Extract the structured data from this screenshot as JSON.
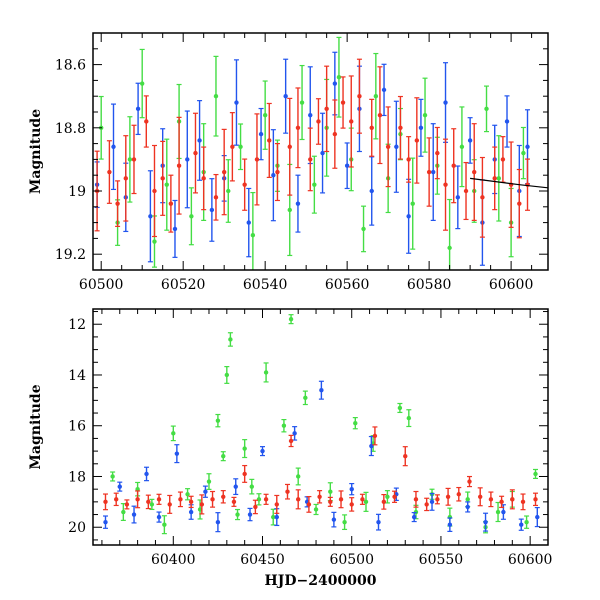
{
  "chart_data": [
    {
      "type": "scatter",
      "panel": "top",
      "title": "",
      "xlabel": "",
      "ylabel": "Magnitude",
      "xlim": [
        60498,
        60609
      ],
      "ylim": [
        19.25,
        18.5
      ],
      "y_inverted": true,
      "x_ticks": [
        60500,
        60520,
        60540,
        60560,
        60580,
        60600
      ],
      "y_ticks": [
        18.6,
        18.8,
        19,
        19.2
      ],
      "x_tick_labels": [
        "60500",
        "60520",
        "60540",
        "60560",
        "60580",
        "60600"
      ],
      "y_tick_labels": [
        "18.6",
        "18.8",
        "19",
        "19.2"
      ],
      "series": [
        {
          "color": "#2255ee",
          "values": [
            [
              60499,
              18.98
            ],
            [
              60503,
              18.86
            ],
            [
              60506,
              19.02
            ],
            [
              60509,
              18.74
            ],
            [
              60512,
              19.08
            ],
            [
              60515,
              18.92
            ],
            [
              60518,
              19.12
            ],
            [
              60521,
              18.9
            ],
            [
              60524,
              18.84
            ],
            [
              60527,
              19.06
            ],
            [
              60530,
              18.96
            ],
            [
              60533,
              18.72
            ],
            [
              60536,
              19.1
            ],
            [
              60539,
              18.82
            ],
            [
              60542,
              18.95
            ],
            [
              60545,
              18.7
            ],
            [
              60548,
              19.04
            ],
            [
              60551,
              18.76
            ],
            [
              60554,
              18.88
            ],
            [
              60557,
              18.66
            ],
            [
              60560,
              18.92
            ],
            [
              60563,
              18.74
            ],
            [
              60566,
              19.0
            ],
            [
              60569,
              18.68
            ],
            [
              60572,
              18.86
            ],
            [
              60575,
              19.08
            ],
            [
              60578,
              18.8
            ],
            [
              60581,
              18.94
            ],
            [
              60584,
              18.72
            ],
            [
              60587,
              19.02
            ],
            [
              60590,
              18.84
            ],
            [
              60593,
              19.1
            ],
            [
              60596,
              18.9
            ],
            [
              60599,
              18.78
            ],
            [
              60602,
              19.0
            ],
            [
              60604,
              18.86
            ]
          ]
        },
        {
          "color": "#44dd44",
          "values": [
            [
              60500,
              18.8
            ],
            [
              60504,
              19.1
            ],
            [
              60507,
              18.9
            ],
            [
              60510,
              18.66
            ],
            [
              60513,
              19.16
            ],
            [
              60516,
              18.98
            ],
            [
              60519,
              18.78
            ],
            [
              60522,
              19.08
            ],
            [
              60525,
              18.94
            ],
            [
              60528,
              18.7
            ],
            [
              60531,
              19.0
            ],
            [
              60534,
              18.86
            ],
            [
              60537,
              19.14
            ],
            [
              60540,
              18.76
            ],
            [
              60543,
              18.92
            ],
            [
              60546,
              19.06
            ],
            [
              60549,
              18.72
            ],
            [
              60552,
              18.98
            ],
            [
              60555,
              18.8
            ],
            [
              60558,
              18.64
            ],
            [
              60561,
              18.9
            ],
            [
              60564,
              19.12
            ],
            [
              60567,
              18.7
            ],
            [
              60570,
              18.96
            ],
            [
              60573,
              18.82
            ],
            [
              60576,
              19.04
            ],
            [
              60579,
              18.76
            ],
            [
              60582,
              18.92
            ],
            [
              60585,
              19.18
            ],
            [
              60588,
              18.86
            ],
            [
              60591,
              19.0
            ],
            [
              60594,
              18.74
            ],
            [
              60597,
              18.96
            ],
            [
              60600,
              19.1
            ],
            [
              60603,
              18.88
            ]
          ]
        },
        {
          "color": "#ee3322",
          "values": [
            [
              60499,
              19.0
            ],
            [
              60502,
              18.94
            ],
            [
              60504,
              19.04
            ],
            [
              60506,
              18.96
            ],
            [
              60508,
              18.9
            ],
            [
              60511,
              18.78
            ],
            [
              60513,
              19.0
            ],
            [
              60515,
              18.96
            ],
            [
              60517,
              19.04
            ],
            [
              60519,
              18.92
            ],
            [
              60523,
              18.88
            ],
            [
              60525,
              18.96
            ],
            [
              60528,
              19.02
            ],
            [
              60530,
              18.94
            ],
            [
              60532,
              18.86
            ],
            [
              60535,
              18.98
            ],
            [
              60538,
              18.9
            ],
            [
              60541,
              18.84
            ],
            [
              60543,
              18.94
            ],
            [
              60546,
              18.86
            ],
            [
              60548,
              18.8
            ],
            [
              60551,
              18.9
            ],
            [
              60553,
              18.78
            ],
            [
              60555,
              18.74
            ],
            [
              60557,
              18.82
            ],
            [
              60559,
              18.72
            ],
            [
              60561,
              18.78
            ],
            [
              60563,
              18.7
            ],
            [
              60566,
              18.8
            ],
            [
              60568,
              18.76
            ],
            [
              60570,
              18.86
            ],
            [
              60573,
              18.8
            ],
            [
              60575,
              18.9
            ],
            [
              60577,
              18.84
            ],
            [
              60580,
              18.94
            ],
            [
              60582,
              18.88
            ],
            [
              60584,
              18.98
            ],
            [
              60586,
              18.92
            ],
            [
              60589,
              19.0
            ],
            [
              60591,
              18.94
            ],
            [
              60593,
              19.02
            ],
            [
              60596,
              18.96
            ],
            [
              60598,
              18.9
            ],
            [
              60600,
              18.98
            ],
            [
              60602,
              19.04
            ],
            [
              60604,
              18.98
            ]
          ]
        }
      ],
      "model_curve": [
        [
          60590,
          18.96
        ],
        [
          60596,
          18.97
        ],
        [
          60602,
          18.98
        ],
        [
          60609,
          18.99
        ]
      ],
      "grid": false,
      "legend": "none"
    },
    {
      "type": "scatter",
      "panel": "bottom",
      "title": "",
      "xlabel": "HJD−2400000",
      "ylabel": "Magnitude",
      "xlim": [
        60355,
        60610
      ],
      "ylim": [
        20.7,
        11.4
      ],
      "y_inverted": true,
      "x_ticks": [
        60400,
        60450,
        60500,
        60550,
        60600
      ],
      "y_ticks": [
        12,
        14,
        16,
        18,
        20
      ],
      "x_tick_labels": [
        "60400",
        "60450",
        "60500",
        "60550",
        "60600"
      ],
      "y_tick_labels": [
        "12",
        "14",
        "16",
        "18",
        "20"
      ],
      "series": [
        {
          "color": "#44dd44",
          "values": [
            [
              60366,
              18.0
            ],
            [
              60372,
              19.4
            ],
            [
              60380,
              18.5
            ],
            [
              60388,
              19.1
            ],
            [
              60395,
              19.9
            ],
            [
              60400,
              16.3
            ],
            [
              60408,
              18.7
            ],
            [
              60415,
              19.3
            ],
            [
              60420,
              18.2
            ],
            [
              60425,
              15.8
            ],
            [
              60428,
              17.2
            ],
            [
              60430,
              14.0
            ],
            [
              60432,
              12.6
            ],
            [
              60436,
              19.5
            ],
            [
              60440,
              16.9
            ],
            [
              60444,
              18.4
            ],
            [
              60448,
              18.9
            ],
            [
              60452,
              13.9
            ],
            [
              60456,
              19.6
            ],
            [
              60462,
              16.0
            ],
            [
              60466,
              11.8
            ],
            [
              60470,
              18.0
            ],
            [
              60474,
              14.9
            ],
            [
              60480,
              19.3
            ],
            [
              60488,
              18.6
            ],
            [
              60496,
              19.8
            ],
            [
              60502,
              15.9
            ],
            [
              60508,
              19.0
            ],
            [
              60512,
              16.7
            ],
            [
              60520,
              18.8
            ],
            [
              60527,
              15.3
            ],
            [
              60532,
              15.7
            ],
            [
              60536,
              19.4
            ],
            [
              60545,
              18.7
            ],
            [
              60555,
              19.6
            ],
            [
              60565,
              18.9
            ],
            [
              60575,
              20.0
            ],
            [
              60582,
              19.4
            ],
            [
              60590,
              18.9
            ],
            [
              60598,
              19.8
            ],
            [
              60603,
              17.9
            ]
          ]
        },
        {
          "color": "#2255ee",
          "values": [
            [
              60362,
              19.8
            ],
            [
              60370,
              18.4
            ],
            [
              60378,
              19.5
            ],
            [
              60385,
              17.9
            ],
            [
              60392,
              19.6
            ],
            [
              60402,
              17.1
            ],
            [
              60410,
              19.4
            ],
            [
              60418,
              18.6
            ],
            [
              60425,
              19.8
            ],
            [
              60435,
              18.4
            ],
            [
              60443,
              19.5
            ],
            [
              60450,
              17.0
            ],
            [
              60458,
              19.6
            ],
            [
              60468,
              16.3
            ],
            [
              60475,
              19.0
            ],
            [
              60483,
              14.6
            ],
            [
              60490,
              19.7
            ],
            [
              60500,
              18.5
            ],
            [
              60511,
              16.8
            ],
            [
              60515,
              19.8
            ],
            [
              60525,
              18.7
            ],
            [
              60535,
              19.6
            ],
            [
              60545,
              19.0
            ],
            [
              60555,
              19.9
            ],
            [
              60565,
              19.2
            ],
            [
              60575,
              19.8
            ],
            [
              60585,
              19.4
            ],
            [
              60595,
              19.9
            ],
            [
              60604,
              19.6
            ]
          ]
        },
        {
          "color": "#ee3322",
          "values": [
            [
              60362,
              19.0
            ],
            [
              60368,
              18.9
            ],
            [
              60374,
              19.1
            ],
            [
              60380,
              18.9
            ],
            [
              60386,
              19.0
            ],
            [
              60392,
              18.9
            ],
            [
              60398,
              19.1
            ],
            [
              60404,
              18.9
            ],
            [
              60410,
              19.0
            ],
            [
              60416,
              19.1
            ],
            [
              60422,
              18.9
            ],
            [
              60428,
              18.8
            ],
            [
              60434,
              19.0
            ],
            [
              60440,
              17.9
            ],
            [
              60446,
              19.2
            ],
            [
              60452,
              18.9
            ],
            [
              60458,
              19.1
            ],
            [
              60464,
              18.6
            ],
            [
              60466,
              16.6
            ],
            [
              60470,
              18.9
            ],
            [
              60476,
              19.1
            ],
            [
              60482,
              18.8
            ],
            [
              60488,
              19.0
            ],
            [
              60494,
              18.9
            ],
            [
              60500,
              19.1
            ],
            [
              60506,
              18.9
            ],
            [
              60513,
              16.4
            ],
            [
              60518,
              19.0
            ],
            [
              60524,
              18.8
            ],
            [
              60530,
              17.2
            ],
            [
              60536,
              18.9
            ],
            [
              60542,
              19.1
            ],
            [
              60548,
              18.9
            ],
            [
              60554,
              18.8
            ],
            [
              60560,
              18.7
            ],
            [
              60566,
              18.2
            ],
            [
              60572,
              18.8
            ],
            [
              60578,
              18.9
            ],
            [
              60584,
              19.0
            ],
            [
              60590,
              18.9
            ],
            [
              60596,
              19.0
            ],
            [
              60603,
              18.9
            ]
          ]
        }
      ],
      "grid": false,
      "legend": "none"
    }
  ]
}
